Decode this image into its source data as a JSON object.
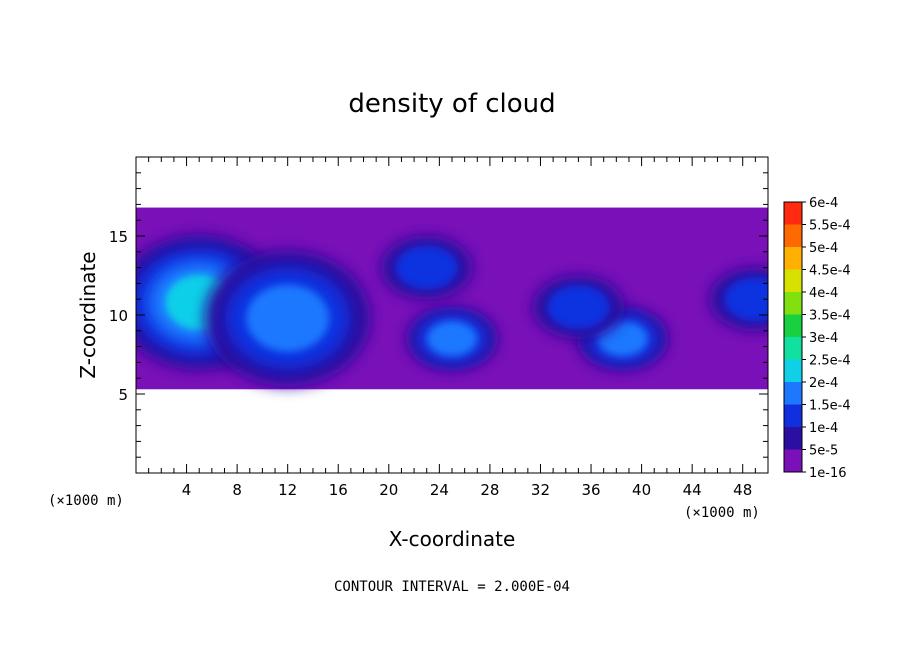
{
  "chart_data": {
    "type": "heatmap",
    "title": "density of cloud",
    "xlabel": "X-coordinate",
    "ylabel": "Z-coordinate",
    "x_unit": "(×1000 m)",
    "x_unit_right": "(×1000 m)",
    "xlim": [
      0,
      50
    ],
    "ylim": [
      0,
      20
    ],
    "x_ticks": [
      4,
      8,
      12,
      16,
      20,
      24,
      28,
      32,
      36,
      40,
      44,
      48
    ],
    "y_ticks": [
      5,
      10,
      15
    ],
    "grid": false,
    "legend_placement": "right",
    "colorbar": {
      "levels": [
        "1e-16",
        "5e-5",
        "1e-4",
        "1.5e-4",
        "2e-4",
        "2.5e-4",
        "3e-4",
        "3.5e-4",
        "4e-4",
        "4.5e-4",
        "5e-4",
        "5.5e-4",
        "6e-4"
      ],
      "colors": [
        "#7a10b8",
        "#2a0fa0",
        "#1030e0",
        "#1e78ff",
        "#10d0e8",
        "#10e0a0",
        "#18d040",
        "#80e010",
        "#d8e000",
        "#ffb000",
        "#ff6a00",
        "#ff2a10",
        "#ff8888"
      ]
    },
    "cloud_layer": {
      "z_base": 5.3,
      "z_top": 16.8,
      "x_range": [
        0,
        50
      ]
    },
    "dense_regions": [
      {
        "x": 5,
        "z": 10.8,
        "level": "2e-4"
      },
      {
        "x": 12,
        "z": 9.8,
        "level": "1.5e-4"
      },
      {
        "x": 25,
        "z": 8.5,
        "level": "1.5e-4"
      },
      {
        "x": 38.5,
        "z": 8.5,
        "level": "1.5e-4"
      },
      {
        "x": 23,
        "z": 13,
        "level": "1e-4"
      },
      {
        "x": 35,
        "z": 10.5,
        "level": "1e-4"
      },
      {
        "x": 49,
        "z": 11,
        "level": "1e-4"
      }
    ]
  },
  "footer": {
    "contour_interval": "CONTOUR INTERVAL = 2.000E-04"
  }
}
